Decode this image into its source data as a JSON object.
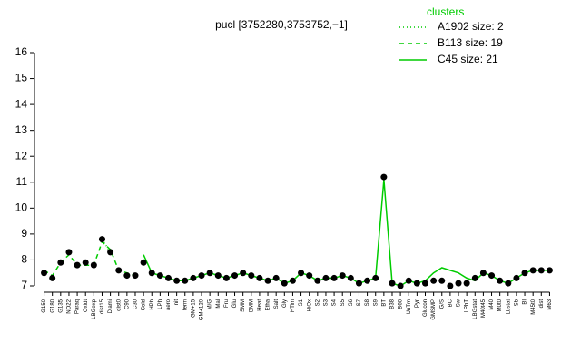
{
  "chart_data": {
    "type": "line",
    "title": "pucl [3752280,3753752,−1]",
    "legend_title": "clusters",
    "categories": [
      "G150",
      "G180",
      "G135",
      "NO22",
      "Paraq",
      "Oxidt",
      "LBGexp",
      "dist15",
      "Diami",
      "dist0",
      "C90",
      "C30",
      "Cold",
      "HPh",
      "LPh",
      "aero",
      "nit",
      "ferm",
      "GM+15",
      "GM+120",
      "M/G",
      "Mal",
      "Fru",
      "Glu",
      "SMM",
      "BMM",
      "Heat",
      "Etha",
      "Salt",
      "Gly",
      "HTim",
      "S1",
      "HiOx",
      "S2",
      "S3",
      "S4",
      "S5",
      "S6",
      "S7",
      "S8",
      "S9",
      "BT",
      "B38",
      "B60",
      "UnTm",
      "Pyr",
      "Glucon",
      "GMSMP",
      "G/S",
      "BC",
      "Sw",
      "LPhT",
      "LBGstat",
      "M40t45",
      "M40",
      "M0t0",
      "Lbstat",
      "Sb",
      "BI",
      "M45t0",
      "dist",
      "M63"
    ],
    "values": [
      7.5,
      7.3,
      7.9,
      8.3,
      7.8,
      7.9,
      7.8,
      8.8,
      8.3,
      7.6,
      7.4,
      7.4,
      7.9,
      7.5,
      7.4,
      7.3,
      7.2,
      7.2,
      7.3,
      7.4,
      7.5,
      7.4,
      7.3,
      7.4,
      7.5,
      7.4,
      7.3,
      7.2,
      7.3,
      7.1,
      7.2,
      7.5,
      7.4,
      7.2,
      7.3,
      7.3,
      7.4,
      7.3,
      7.1,
      7.2,
      7.3,
      11.2,
      7.1,
      7.0,
      7.2,
      7.1,
      7.1,
      7.2,
      7.2,
      7.0,
      7.1,
      7.1,
      7.3,
      7.5,
      7.4,
      7.2,
      7.1,
      7.3,
      7.5,
      7.6,
      7.6,
      7.6
    ],
    "color": "#000000",
    "series": [
      {
        "name": "A1902 size: 2",
        "color": "#00cc00",
        "dash": "dotted",
        "values": [
          null,
          null,
          null,
          null,
          null,
          null,
          null,
          8.8,
          8.3,
          null,
          null,
          null,
          null,
          null,
          null,
          null,
          null,
          null,
          null,
          null,
          null,
          null,
          null,
          null,
          null,
          null,
          null,
          null,
          null,
          null,
          null,
          null,
          null,
          null,
          null,
          null,
          null,
          null,
          null,
          null,
          null,
          null,
          null,
          null,
          null,
          null,
          null,
          null,
          null,
          null,
          null,
          null,
          null,
          null,
          null,
          null,
          null,
          null,
          null,
          null,
          null,
          null
        ]
      },
      {
        "name": "B113 size: 19",
        "color": "#00cc00",
        "dash": "dashed",
        "values": [
          7.6,
          7.4,
          7.9,
          8.2,
          7.8,
          7.8,
          7.8,
          8.7,
          8.4,
          7.6,
          7.5,
          7.4,
          null,
          null,
          null,
          null,
          null,
          null,
          null,
          null,
          null,
          null,
          null,
          null,
          null,
          null,
          null,
          null,
          null,
          null,
          null,
          null,
          null,
          null,
          null,
          null,
          null,
          null,
          null,
          null,
          null,
          null,
          null,
          null,
          null,
          null,
          null,
          null,
          null,
          null,
          null,
          null,
          null,
          null,
          null,
          null,
          null,
          null,
          null,
          null,
          null,
          null
        ]
      },
      {
        "name": "C45 size: 21",
        "color": "#00cc00",
        "dash": "solid",
        "values": [
          null,
          null,
          null,
          null,
          null,
          null,
          null,
          null,
          null,
          null,
          null,
          null,
          8.2,
          7.5,
          7.4,
          7.3,
          7.2,
          7.2,
          7.3,
          7.4,
          7.5,
          7.4,
          7.3,
          7.4,
          7.5,
          7.4,
          7.3,
          7.2,
          7.3,
          7.1,
          7.2,
          7.5,
          7.4,
          7.2,
          7.3,
          7.3,
          7.4,
          7.3,
          7.1,
          7.2,
          7.3,
          11.1,
          7.1,
          7.0,
          7.2,
          7.1,
          7.2,
          7.5,
          7.7,
          7.6,
          7.5,
          7.3,
          7.2,
          7.5,
          7.4,
          7.2,
          7.1,
          7.3,
          7.5,
          7.6,
          7.6,
          7.6
        ]
      }
    ],
    "ylim": [
      7,
      16
    ],
    "yticks": [
      7,
      8,
      9,
      10,
      11,
      12,
      13,
      14,
      15,
      16
    ]
  }
}
